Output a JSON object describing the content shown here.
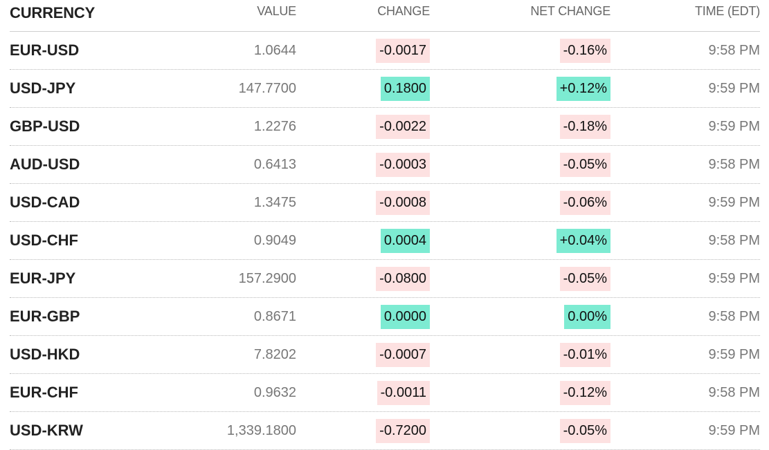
{
  "table": {
    "header": [
      "CURRENCY",
      "VALUE",
      "CHANGE",
      "NET CHANGE",
      "TIME (EDT)"
    ],
    "rows": [
      [
        "EUR-USD",
        "1.0644",
        "-0.0017",
        "-0.16%",
        "9:58 PM"
      ],
      [
        "USD-JPY",
        "147.7700",
        "0.1800",
        "+0.12%",
        "9:59 PM"
      ],
      [
        "GBP-USD",
        "1.2276",
        "-0.0022",
        "-0.18%",
        "9:59 PM"
      ],
      [
        "AUD-USD",
        "0.6413",
        "-0.0003",
        "-0.05%",
        "9:58 PM"
      ],
      [
        "USD-CAD",
        "1.3475",
        "-0.0008",
        "-0.06%",
        "9:59 PM"
      ],
      [
        "USD-CHF",
        "0.9049",
        "0.0004",
        "+0.04%",
        "9:58 PM"
      ],
      [
        "EUR-JPY",
        "157.2900",
        "-0.0800",
        "-0.05%",
        "9:59 PM"
      ],
      [
        "EUR-GBP",
        "0.8671",
        "0.0000",
        "0.00%",
        "9:58 PM"
      ],
      [
        "USD-HKD",
        "7.8202",
        "-0.0007",
        "-0.01%",
        "9:59 PM"
      ],
      [
        "EUR-CHF",
        "0.9632",
        "-0.0011",
        "-0.12%",
        "9:58 PM"
      ],
      [
        "USD-KRW",
        "1,339.1800",
        "-0.7200",
        "-0.05%",
        "9:59 PM"
      ]
    ]
  }
}
